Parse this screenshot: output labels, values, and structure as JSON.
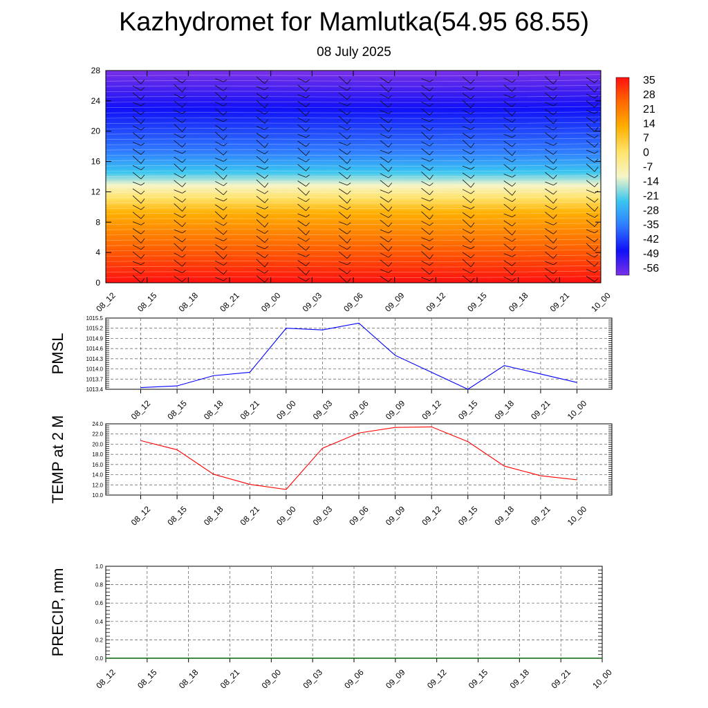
{
  "title": "Kazhydromet for Mamlutka(54.95 68.55)",
  "subtitle": "08 July 2025",
  "colors": {
    "pressure_line": "#0000ff",
    "temperature_line": "#ff0000",
    "precip_line": "#006400",
    "grid": "#555555",
    "colorbar_stops": [
      "#ff1010",
      "#ff6a00",
      "#ffb000",
      "#ffe36a",
      "#f5f5c8",
      "#3ac6f0",
      "#2f7bff",
      "#1010f8",
      "#7a30e8"
    ]
  },
  "chart_data": [
    {
      "type": "heatmap",
      "name": "cross-section",
      "x_categories": [
        "08_12",
        "08_15",
        "08_18",
        "08_21",
        "09_00",
        "09_03",
        "09_06",
        "09_09",
        "09_12",
        "09_15",
        "09_18",
        "09_21",
        "10_00"
      ],
      "y_ticks": [
        0,
        4,
        8,
        12,
        16,
        20,
        24,
        28
      ],
      "ylim": [
        0,
        28
      ],
      "colorbar_labels": [
        "35",
        "28",
        "21",
        "14",
        "7",
        "0",
        "-7",
        "-14",
        "-21",
        "-28",
        "-35",
        "-42",
        "-49",
        "-56"
      ],
      "wind_barbs": true
    },
    {
      "type": "line",
      "name": "pressure",
      "ylabel": "PMSL",
      "x": [
        "08_12",
        "08_15",
        "08_18",
        "08_21",
        "09_00",
        "09_03",
        "09_06",
        "09_09",
        "09_12",
        "09_15",
        "09_18",
        "09_21",
        "10_00"
      ],
      "values": [
        1013.45,
        1013.5,
        1013.8,
        1013.9,
        1015.2,
        1015.15,
        1015.35,
        1014.4,
        1013.9,
        1013.4,
        1014.1,
        1013.85,
        1013.6
      ],
      "y_ticks": [
        "1013.4",
        "1013.7",
        "1014.0",
        "1014.3",
        "1014.6",
        "1014.9",
        "1015.2",
        "1015.5"
      ],
      "ylim": [
        1013.4,
        1015.5
      ],
      "grid": true
    },
    {
      "type": "line",
      "name": "temperature",
      "ylabel": "TEMP at 2 M",
      "x": [
        "08_12",
        "08_15",
        "08_18",
        "08_21",
        "09_00",
        "09_03",
        "09_06",
        "09_09",
        "09_12",
        "09_15",
        "09_18",
        "09_21",
        "10_00"
      ],
      "values": [
        20.7,
        18.9,
        14.1,
        12.1,
        11.1,
        19.2,
        22.2,
        23.3,
        23.4,
        20.5,
        15.7,
        13.8,
        13.0
      ],
      "y_ticks": [
        "10.0",
        "12.0",
        "14.0",
        "16.0",
        "18.0",
        "20.0",
        "22.0",
        "24.0"
      ],
      "ylim": [
        10,
        24
      ],
      "grid": true
    },
    {
      "type": "line",
      "name": "precipitation",
      "ylabel": "PRECIP, mm",
      "x": [
        "08_12",
        "08_15",
        "08_18",
        "08_21",
        "09_00",
        "09_03",
        "09_06",
        "09_09",
        "09_12",
        "09_15",
        "09_18",
        "09_21",
        "10_00"
      ],
      "values": [
        0,
        0,
        0,
        0,
        0,
        0,
        0,
        0,
        0,
        0,
        0,
        0,
        0
      ],
      "y_ticks": [
        "0.0",
        "0.2",
        "0.4",
        "0.6",
        "0.8",
        "1.0"
      ],
      "ylim": [
        0,
        1
      ],
      "grid": true
    }
  ]
}
